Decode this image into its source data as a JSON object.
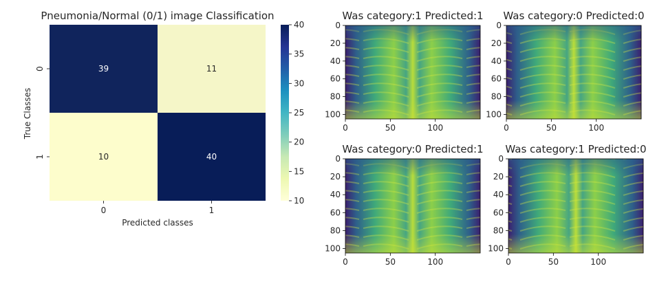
{
  "chart_data": [
    {
      "type": "heatmap",
      "title": "Pneumonia/Normal (0/1) image Classification",
      "xlabel": "Predicted classes",
      "ylabel": "True Classes",
      "x_categories": [
        "0",
        "1"
      ],
      "y_categories": [
        "0",
        "1"
      ],
      "values": [
        [
          39,
          11
        ],
        [
          10,
          40
        ]
      ],
      "colormap": "YlGnBu",
      "colorbar": {
        "range": [
          10,
          40
        ],
        "ticks": [
          "10",
          "15",
          "20",
          "25",
          "30",
          "35",
          "40"
        ]
      }
    },
    {
      "type": "image",
      "title": "Was category:1 Predicted:1",
      "xlim": [
        0,
        150
      ],
      "ylim": [
        105,
        0
      ],
      "x_ticks": [
        "0",
        "50",
        "100"
      ],
      "y_ticks": [
        "0",
        "20",
        "40",
        "60",
        "80",
        "100"
      ]
    },
    {
      "type": "image",
      "title": "Was category:0 Predicted:0",
      "xlim": [
        0,
        150
      ],
      "ylim": [
        105,
        0
      ],
      "x_ticks": [
        "0",
        "50",
        "100"
      ],
      "y_ticks": [
        "0",
        "20",
        "40",
        "60",
        "80",
        "100"
      ]
    },
    {
      "type": "image",
      "title": "Was category:0 Predicted:1",
      "xlim": [
        0,
        150
      ],
      "ylim": [
        105,
        0
      ],
      "x_ticks": [
        "0",
        "50",
        "100"
      ],
      "y_ticks": [
        "0",
        "20",
        "40",
        "60",
        "80",
        "100"
      ]
    },
    {
      "type": "image",
      "title": "Was category:1 Predicted:0",
      "xlim": [
        0,
        150
      ],
      "ylim": [
        105,
        0
      ],
      "x_ticks": [
        "0",
        "50",
        "100"
      ],
      "y_ticks": [
        "0",
        "20",
        "40",
        "60",
        "80",
        "100"
      ]
    }
  ],
  "colors": {
    "heat_dark": "#081d58",
    "heat_light": "#fdfdcc",
    "xray_dark": "#3d1a6e",
    "xray_mid": "#21908d",
    "xray_light": "#c8df35"
  }
}
